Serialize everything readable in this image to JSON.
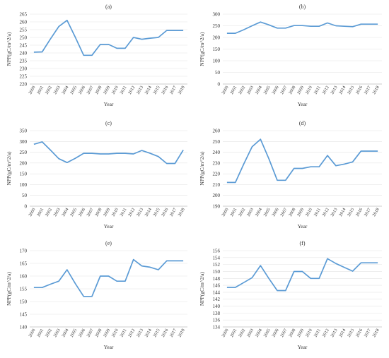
{
  "chart_data": [
    {
      "type": "line",
      "title": "(a)",
      "xlabel": "Year",
      "ylabel": "NPP(gC/m^2/a)",
      "categories": [
        "2000",
        "2001",
        "2002",
        "2003",
        "2004",
        "2005",
        "2006",
        "2007",
        "2008",
        "2009",
        "2010",
        "2011",
        "2012",
        "2013",
        "2014",
        "2015",
        "2016",
        "2017",
        "2018"
      ],
      "values": [
        240.5,
        240.7,
        249,
        257,
        261,
        250,
        238.5,
        238.5,
        245.5,
        245.5,
        243,
        243,
        250,
        248.8,
        249.5,
        250,
        254.5,
        254.5,
        254.5
      ],
      "ylim": [
        220,
        265
      ],
      "yticks": [
        220,
        225,
        230,
        235,
        240,
        245,
        250,
        255,
        260,
        265
      ],
      "color": "#5b9bd5"
    },
    {
      "type": "line",
      "title": "(b)",
      "xlabel": "Year",
      "ylabel": "NPP(gC/m^2/a)",
      "categories": [
        "2000",
        "2001",
        "2002",
        "2003",
        "2004",
        "2005",
        "2006",
        "2007",
        "2008",
        "2009",
        "2010",
        "2011",
        "2012",
        "2013",
        "2014",
        "2015",
        "2016",
        "2017",
        "2018"
      ],
      "values": [
        218,
        218,
        233,
        250,
        266,
        254,
        240,
        240,
        251,
        251,
        248,
        248,
        262,
        250,
        248,
        246,
        257,
        257,
        257
      ],
      "ylim": [
        0,
        300
      ],
      "yticks": [
        0,
        50,
        100,
        150,
        200,
        250,
        300
      ],
      "color": "#5b9bd5"
    },
    {
      "type": "line",
      "title": "(c)",
      "xlabel": "Year",
      "ylabel": "NPP(gC/m^2/a)",
      "categories": [
        "2000",
        "2001",
        "2002",
        "2003",
        "2004",
        "2005",
        "2006",
        "2007",
        "2008",
        "2009",
        "2010",
        "2011",
        "2012",
        "2013",
        "2014",
        "2015",
        "2016",
        "2017",
        "2018"
      ],
      "values": [
        287,
        298,
        260,
        220,
        202,
        222,
        245,
        245,
        242,
        242,
        245,
        245,
        242,
        258,
        245,
        230,
        198,
        198,
        260
      ],
      "ylim": [
        0,
        350
      ],
      "yticks": [
        0,
        50,
        100,
        150,
        200,
        250,
        300,
        350
      ],
      "color": "#5b9bd5"
    },
    {
      "type": "line",
      "title": "(d)",
      "xlabel": "Year",
      "ylabel": "NPP(gC/m^2/a)",
      "categories": [
        "2000",
        "2001",
        "2002",
        "2003",
        "2004",
        "2005",
        "2006",
        "2007",
        "2008",
        "2009",
        "2010",
        "2011",
        "2012",
        "2013",
        "2014",
        "2015",
        "2016",
        "2017",
        "2018"
      ],
      "values": [
        212,
        212,
        229,
        245,
        252,
        234,
        214,
        214,
        225,
        225,
        226.5,
        226.5,
        237,
        227.5,
        229,
        231,
        241,
        241,
        241
      ],
      "ylim": [
        190,
        260
      ],
      "yticks": [
        190,
        200,
        210,
        220,
        230,
        240,
        250,
        260
      ],
      "color": "#5b9bd5"
    },
    {
      "type": "line",
      "title": "(e)",
      "xlabel": "Year",
      "ylabel": "NPP(gC/m^2/a)",
      "categories": [
        "2000",
        "2001",
        "2002",
        "2003",
        "2004",
        "2005",
        "2006",
        "2007",
        "2008",
        "2009",
        "2010",
        "2011",
        "2012",
        "2013",
        "2014",
        "2015",
        "2016",
        "2017",
        "2018"
      ],
      "values": [
        155.5,
        155.5,
        156.8,
        158,
        162.5,
        157,
        152,
        152,
        160,
        160,
        158,
        158,
        166.5,
        164,
        163.5,
        162.5,
        166,
        166,
        166
      ],
      "ylim": [
        140,
        170
      ],
      "yticks": [
        140,
        145,
        150,
        155,
        160,
        165,
        170
      ],
      "color": "#5b9bd5"
    },
    {
      "type": "line",
      "title": "(f)",
      "xlabel": "Year",
      "ylabel": "NPP(gC/m^2/a)",
      "categories": [
        "2000",
        "2001",
        "2002",
        "2003",
        "2004",
        "2005",
        "2006",
        "2007",
        "2008",
        "2009",
        "2010",
        "2011",
        "2012",
        "2013",
        "2014",
        "2015",
        "2016",
        "2017",
        "2018"
      ],
      "values": [
        145.4,
        145.4,
        146.8,
        148.2,
        151.7,
        148,
        144.5,
        144.5,
        150,
        150,
        148,
        148,
        153.7,
        152.3,
        151.2,
        150.1,
        152.5,
        152.5,
        152.5
      ],
      "ylim": [
        134,
        156
      ],
      "yticks": [
        134,
        136,
        138,
        140,
        142,
        144,
        146,
        148,
        150,
        152,
        154,
        156
      ],
      "color": "#5b9bd5"
    }
  ]
}
